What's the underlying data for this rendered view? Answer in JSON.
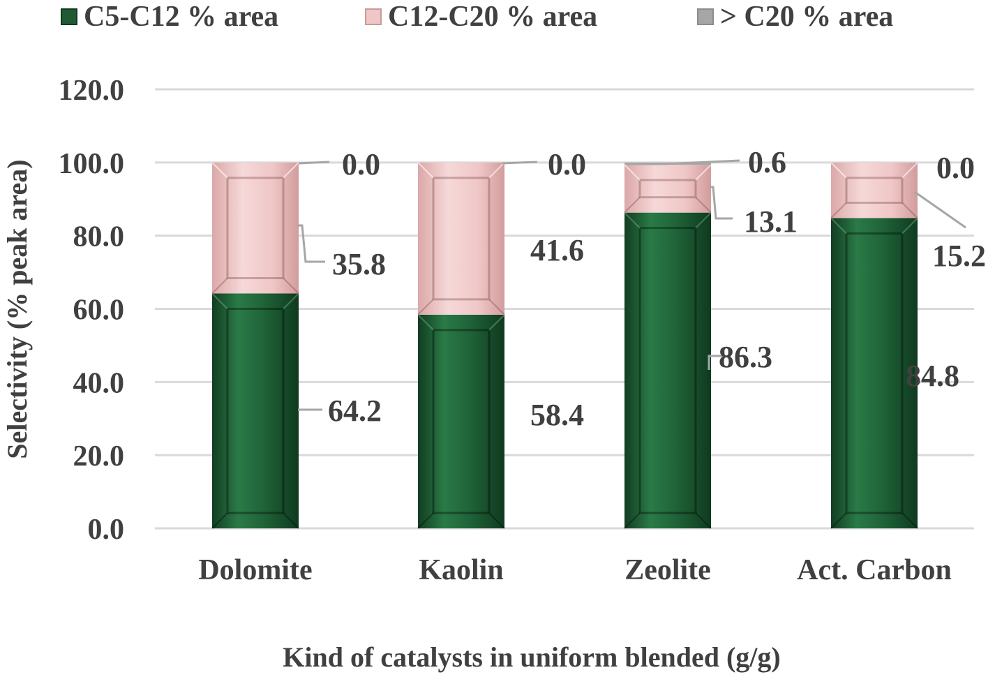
{
  "chart_data": {
    "type": "bar",
    "stacked": true,
    "categories": [
      "Dolomite",
      "Kaolin",
      "Zeolite",
      "Act. Carbon"
    ],
    "series": [
      {
        "name": "C5-C12 % area",
        "values": [
          64.2,
          58.4,
          86.3,
          84.8
        ],
        "color": "#1f5a34",
        "labels": [
          "64.2",
          "58.4",
          "86.3",
          "84.8"
        ]
      },
      {
        "name": "C12-C20 % area",
        "values": [
          35.8,
          41.6,
          13.1,
          15.2
        ],
        "color": "#f0c6c6",
        "labels": [
          "35.8",
          "41.6",
          "13.1",
          "15.2"
        ]
      },
      {
        "name": "> C20 % area",
        "values": [
          0.0,
          0.0,
          0.6,
          0.0
        ],
        "color": "#a6a6a6",
        "labels": [
          "0.0",
          "0.0",
          "0.6",
          "0.0"
        ]
      }
    ],
    "xlabel": "Kind of catalysts in uniform blended (g/g)",
    "ylabel": "Selectivity (% peak area)",
    "ylim": [
      0,
      120
    ],
    "yticks": [
      "0.0",
      "20.0",
      "40.0",
      "60.0",
      "80.0",
      "100.0",
      "120.0"
    ],
    "grid": true,
    "legend_position": "top"
  }
}
